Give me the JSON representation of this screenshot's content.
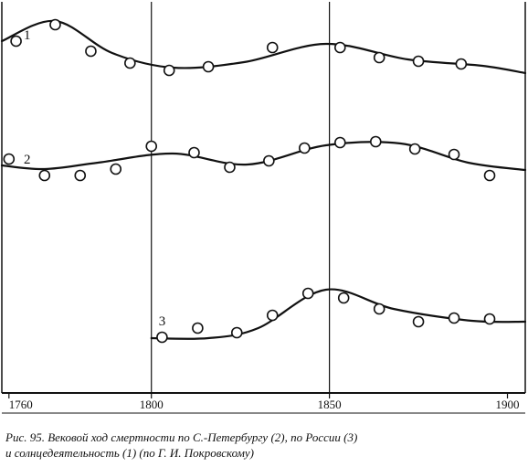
{
  "chart_data": {
    "type": "line",
    "x_ticks": [
      1760,
      1800,
      1850,
      1900
    ],
    "x_tick_labels": [
      "1760",
      "1800",
      "1850",
      "1900"
    ],
    "xlim": [
      1758,
      1905
    ],
    "vertical_gridlines": [
      1800,
      1850
    ],
    "grid": false,
    "y_axis_values_shown": false,
    "series": [
      {
        "name": "1",
        "points": [
          [
            1762,
            45
          ],
          [
            1773,
            27
          ],
          [
            1783,
            56
          ],
          [
            1794,
            69
          ],
          [
            1805,
            77
          ],
          [
            1816,
            73
          ],
          [
            1834,
            52
          ],
          [
            1853,
            52
          ],
          [
            1864,
            63
          ],
          [
            1875,
            67
          ],
          [
            1887,
            70
          ]
        ],
        "curve": [
          [
            1758,
            45
          ],
          [
            1773,
            23
          ],
          [
            1789,
            58
          ],
          [
            1806,
            74
          ],
          [
            1826,
            68
          ],
          [
            1849,
            48
          ],
          [
            1872,
            65
          ],
          [
            1893,
            72
          ],
          [
            1905,
            80
          ]
        ]
      },
      {
        "name": "2",
        "points": [
          [
            1760,
            174
          ],
          [
            1770,
            192
          ],
          [
            1780,
            192
          ],
          [
            1790,
            185
          ],
          [
            1800,
            160
          ],
          [
            1812,
            167
          ],
          [
            1822,
            183
          ],
          [
            1833,
            176
          ],
          [
            1843,
            162
          ],
          [
            1853,
            156
          ],
          [
            1863,
            155
          ],
          [
            1874,
            163
          ],
          [
            1885,
            169
          ],
          [
            1895,
            192
          ]
        ],
        "curve": [
          [
            1758,
            181
          ],
          [
            1770,
            185
          ],
          [
            1785,
            178
          ],
          [
            1806,
            168
          ],
          [
            1827,
            180
          ],
          [
            1849,
            159
          ],
          [
            1870,
            157
          ],
          [
            1889,
            178
          ],
          [
            1905,
            186
          ]
        ]
      },
      {
        "name": "3",
        "points": [
          [
            1803,
            369
          ],
          [
            1813,
            359
          ],
          [
            1824,
            364
          ],
          [
            1834,
            345
          ],
          [
            1844,
            321
          ],
          [
            1854,
            326
          ],
          [
            1864,
            338
          ],
          [
            1875,
            352
          ],
          [
            1885,
            348
          ],
          [
            1895,
            349
          ]
        ],
        "curve": [
          [
            1800,
            370
          ],
          [
            1816,
            370
          ],
          [
            1830,
            359
          ],
          [
            1849,
            317
          ],
          [
            1868,
            338
          ],
          [
            1890,
            351
          ],
          [
            1905,
            352
          ]
        ]
      }
    ]
  },
  "caption": {
    "line1": "Рис. 95. Вековой ход смертности по С.-Петербургу (2), по России (3)",
    "line2": "и солнцедеятельность (1) (по Г. И. Покровскому)"
  }
}
